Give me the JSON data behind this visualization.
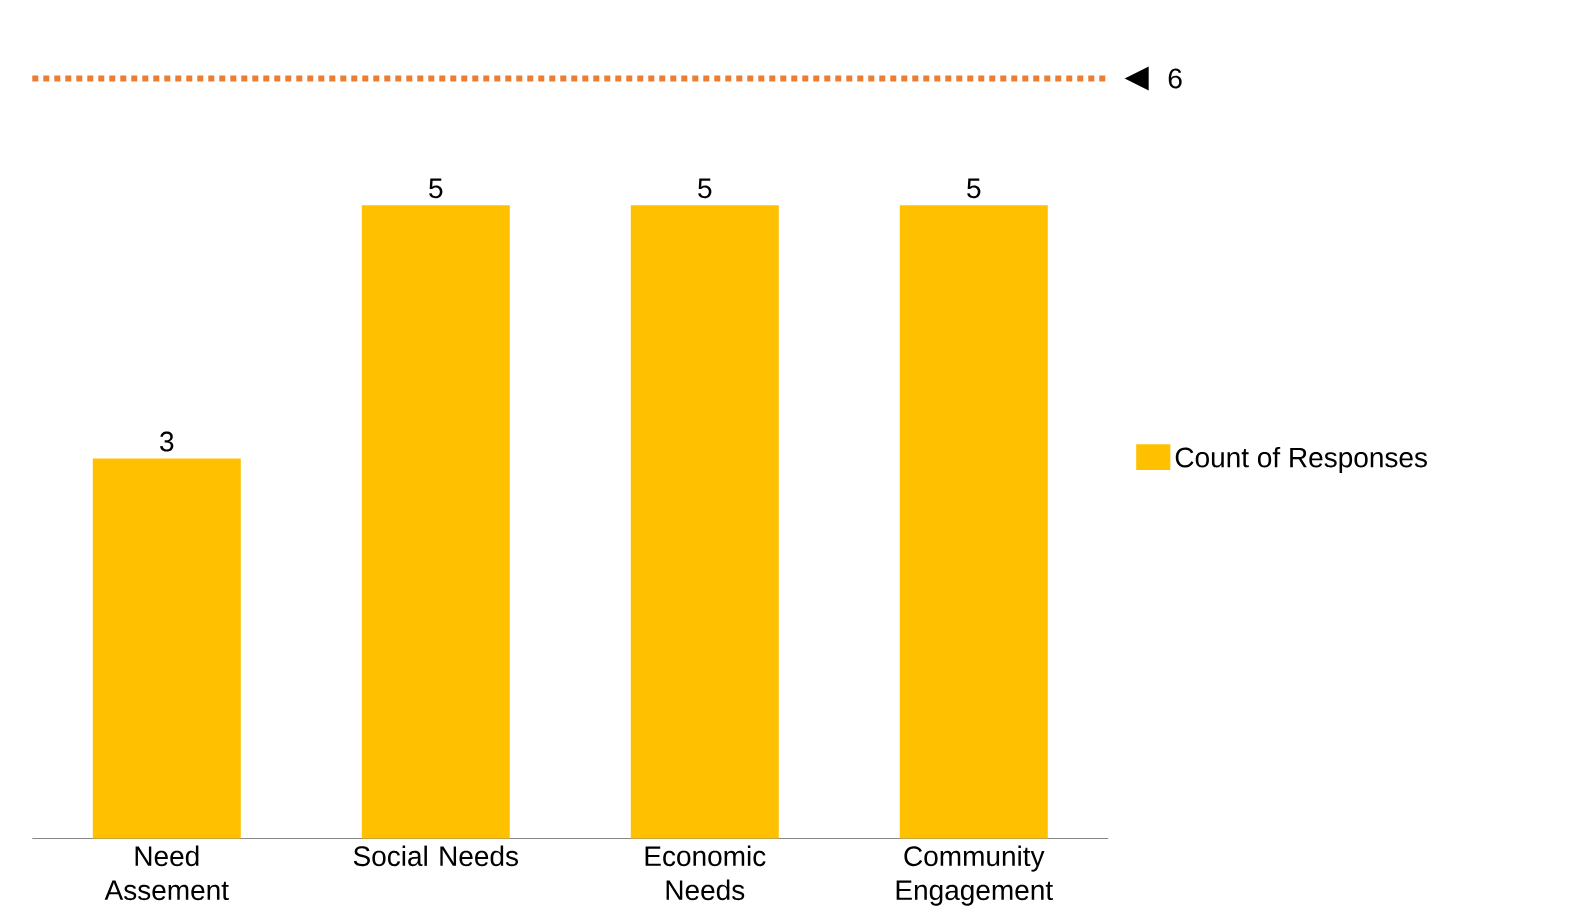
{
  "chart_data": {
    "type": "bar",
    "categories": [
      "Need Assement",
      "Social Needs",
      "Economic Needs",
      "Community Engagement"
    ],
    "series": [
      {
        "name": "Count of Responses",
        "color": "#ffc000",
        "values": [
          3,
          5,
          5,
          5
        ],
        "value_labels": [
          "3",
          "5",
          "5",
          "5"
        ]
      }
    ],
    "ylim": [
      0,
      6
    ],
    "tick_labels": "x",
    "grid": false,
    "legend": "right",
    "ref_lines": [
      {
        "axis": "y",
        "value": 6,
        "label": "6",
        "color": "#ed7d31",
        "line_style": "dotted"
      }
    ]
  }
}
